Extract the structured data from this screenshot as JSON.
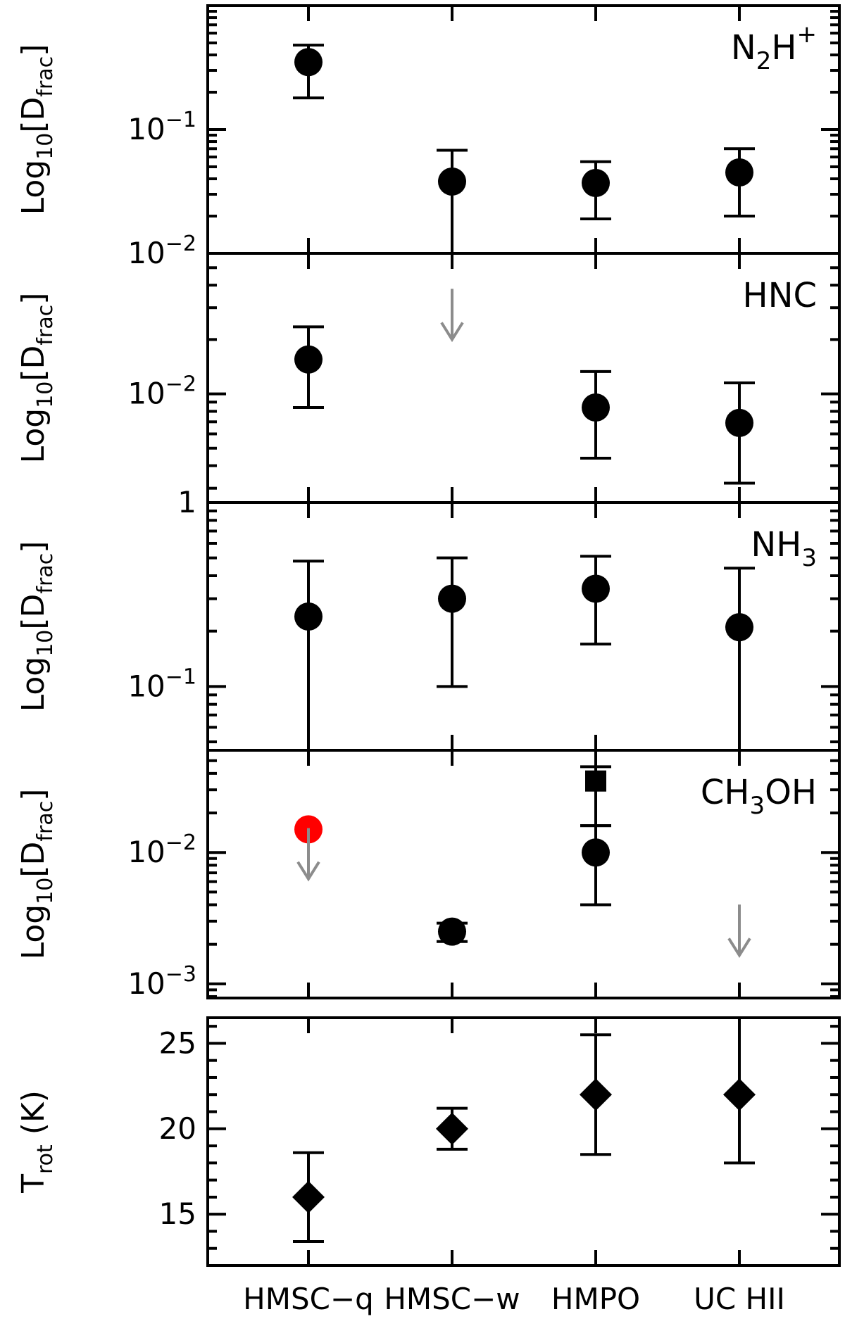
{
  "chart_data": {
    "type": "scatter",
    "categories": [
      "HMSC-q",
      "HMSC-w",
      "HMPO",
      "UC HII"
    ],
    "category_labels": [
      "HMSC−q",
      "HMSC−w",
      "HMPO",
      "UC HII"
    ],
    "panels": [
      {
        "molecule": "N2H+",
        "label": {
          "base": "N",
          "sub": "2",
          "mid": "H",
          "sup": "+"
        },
        "ylabel": {
          "base": "Log",
          "sub1": "10",
          "mid": "[D",
          "sub2": "frac",
          "end": "]"
        },
        "yscale": "log",
        "ylim": [
          0.01,
          1.0
        ],
        "ticks": [
          {
            "value": 0.1,
            "mant": "10",
            "exp": "−1"
          },
          {
            "value": 0.01,
            "mant": "10",
            "exp": "−2"
          }
        ],
        "points": [
          {
            "category": "HMSC-q",
            "y": 0.35,
            "ylow": 0.18,
            "yhigh": 0.48,
            "marker": "circle",
            "color": "#000000"
          },
          {
            "category": "HMSC-w",
            "y": 0.038,
            "ylow": 0.01,
            "yhigh": 0.068,
            "marker": "circle",
            "color": "#000000"
          },
          {
            "category": "HMPO",
            "y": 0.037,
            "ylow": 0.019,
            "yhigh": 0.055,
            "marker": "circle",
            "color": "#000000"
          },
          {
            "category": "UC HII",
            "y": 0.045,
            "ylow": 0.02,
            "yhigh": 0.07,
            "marker": "circle",
            "color": "#000000"
          }
        ],
        "upper_limits": []
      },
      {
        "molecule": "HNC",
        "label": {
          "base": "HNC"
        },
        "ylabel": {
          "base": "Log",
          "sub1": "10",
          "mid": "[D",
          "sub2": "frac",
          "end": "]"
        },
        "yscale": "log",
        "ylim": [
          0.0025,
          0.06
        ],
        "ticks": [
          {
            "value": 0.01,
            "mant": "10",
            "exp": "−2"
          }
        ],
        "points": [
          {
            "category": "HMSC-q",
            "y": 0.0155,
            "ylow": 0.0084,
            "yhigh": 0.0235,
            "marker": "circle",
            "color": "#000000"
          },
          {
            "category": "HMPO",
            "y": 0.0084,
            "ylow": 0.0044,
            "yhigh": 0.0133,
            "marker": "circle",
            "color": "#000000"
          },
          {
            "category": "UC HII",
            "y": 0.0069,
            "ylow": 0.0032,
            "yhigh": 0.0115,
            "marker": "circle",
            "color": "#000000"
          }
        ],
        "upper_limits": [
          {
            "category": "HMSC-w",
            "y": 0.02,
            "color": "#8c8c8c"
          }
        ]
      },
      {
        "molecule": "NH3",
        "label": {
          "base": "NH",
          "sub": "3"
        },
        "ylabel": {
          "base": "Log",
          "sub1": "10",
          "mid": "[D",
          "sub2": "frac",
          "end": "]"
        },
        "yscale": "log",
        "ylim": [
          0.045,
          1.0
        ],
        "ticks": [
          {
            "value": 1.0,
            "text": "1"
          },
          {
            "value": 0.1,
            "mant": "10",
            "exp": "−1"
          }
        ],
        "points": [
          {
            "category": "HMSC-q",
            "y": 0.24,
            "ylow": 0.045,
            "yhigh": 0.48,
            "marker": "circle",
            "color": "#000000"
          },
          {
            "category": "HMSC-w",
            "y": 0.3,
            "ylow": 0.1,
            "yhigh": 0.5,
            "marker": "circle",
            "color": "#000000"
          },
          {
            "category": "HMPO",
            "y": 0.34,
            "ylow": 0.17,
            "yhigh": 0.51,
            "marker": "circle",
            "color": "#000000"
          },
          {
            "category": "UC HII",
            "y": 0.21,
            "ylow": 0.045,
            "yhigh": 0.44,
            "marker": "circle",
            "color": "#000000"
          }
        ],
        "upper_limits": []
      },
      {
        "molecule": "CH3OH",
        "label": {
          "base": "CH",
          "sub": "3",
          "mid": "OH"
        },
        "ylabel": {
          "base": "Log",
          "sub1": "10",
          "mid": "[D",
          "sub2": "frac",
          "end": "]"
        },
        "yscale": "log",
        "ylim": [
          0.00078,
          0.06
        ],
        "ticks": [
          {
            "value": 0.01,
            "mant": "10",
            "exp": "−2"
          },
          {
            "value": 0.001,
            "mant": "10",
            "exp": "−3"
          }
        ],
        "points": [
          {
            "category": "HMSC-q",
            "y": 0.015,
            "marker": "circle",
            "color": "#ff0000"
          },
          {
            "category": "HMSC-w",
            "y": 0.0025,
            "ylow": 0.0021,
            "yhigh": 0.0029,
            "marker": "circle",
            "color": "#000000"
          },
          {
            "category": "HMPO",
            "y": 0.01,
            "ylow": 0.004,
            "yhigh": 0.016,
            "marker": "circle",
            "color": "#000000"
          },
          {
            "category": "HMPO",
            "y": 0.035,
            "ylow": 0.016,
            "yhigh": 0.045,
            "marker": "square",
            "color": "#000000"
          }
        ],
        "upper_limits": [
          {
            "category": "HMSC-q",
            "y": 0.0063,
            "color": "#8c8c8c"
          },
          {
            "category": "UC HII",
            "y": 0.00165,
            "color": "#8c8c8c"
          }
        ]
      },
      {
        "molecule": "Trot",
        "ylabel": {
          "base": "T",
          "sub1": "rot",
          "end": " (K)"
        },
        "yscale": "linear",
        "ylim": [
          12,
          26.5
        ],
        "ticks": [
          {
            "value": 25,
            "text": "25"
          },
          {
            "value": 20,
            "text": "20"
          },
          {
            "value": 15,
            "text": "15"
          }
        ],
        "points": [
          {
            "category": "HMSC-q",
            "y": 16,
            "ylow": 13.4,
            "yhigh": 18.6,
            "marker": "diamond",
            "color": "#000000"
          },
          {
            "category": "HMSC-w",
            "y": 20,
            "ylow": 18.8,
            "yhigh": 21.2,
            "marker": "diamond",
            "color": "#000000"
          },
          {
            "category": "HMPO",
            "y": 22,
            "ylow": 18.5,
            "yhigh": 25.5,
            "marker": "diamond",
            "color": "#000000"
          },
          {
            "category": "UC HII",
            "y": 22,
            "ylow": 18,
            "yhigh": 26.5,
            "marker": "diamond",
            "color": "#000000"
          }
        ],
        "upper_limits": []
      }
    ]
  }
}
